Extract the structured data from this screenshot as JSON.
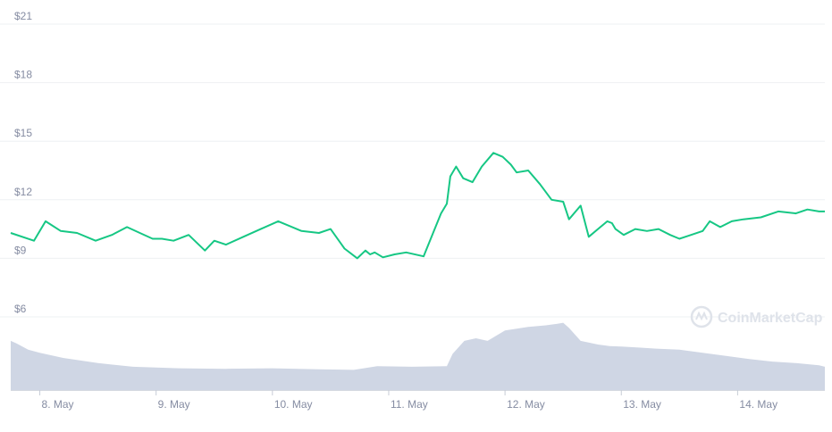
{
  "chart_data": {
    "type": "line",
    "y_axis": {
      "min": 6,
      "max": 21,
      "ticks": [
        21,
        18,
        15,
        12,
        9,
        6
      ],
      "tick_labels": [
        "$21",
        "$18",
        "$15",
        "$12",
        "$9",
        "$6"
      ],
      "grid": true
    },
    "x_axis": {
      "range_days": [
        7.75,
        14.75
      ],
      "tick_days": [
        8,
        9,
        10,
        11,
        12,
        13,
        14
      ],
      "tick_labels": [
        "8. May",
        "9. May",
        "10. May",
        "11. May",
        "12. May",
        "13. May",
        "14. May"
      ]
    },
    "series": [
      {
        "kind": "price",
        "color": "#16c784",
        "x_day": [
          7.75,
          7.95,
          8.05,
          8.18,
          8.32,
          8.48,
          8.62,
          8.75,
          8.86,
          8.97,
          9.05,
          9.15,
          9.28,
          9.42,
          9.5,
          9.6,
          9.75,
          9.9,
          10.05,
          10.25,
          10.4,
          10.5,
          10.62,
          10.73,
          10.8,
          10.84,
          10.88,
          10.95,
          11.05,
          11.15,
          11.3,
          11.45,
          11.5,
          11.53,
          11.58,
          11.64,
          11.72,
          11.8,
          11.9,
          11.98,
          12.05,
          12.1,
          12.2,
          12.3,
          12.4,
          12.5,
          12.55,
          12.65,
          12.72,
          12.82,
          12.88,
          12.92,
          12.95,
          13.02,
          13.12,
          13.22,
          13.32,
          13.42,
          13.5,
          13.6,
          13.7,
          13.76,
          13.85,
          13.95,
          14.05,
          14.2,
          14.35,
          14.5,
          14.6,
          14.7,
          14.75
        ],
        "y_price": [
          10.3,
          9.9,
          10.9,
          10.4,
          10.3,
          9.9,
          10.2,
          10.6,
          10.3,
          10.0,
          10.0,
          9.9,
          10.2,
          9.4,
          9.9,
          9.7,
          10.1,
          10.5,
          10.9,
          10.4,
          10.3,
          10.5,
          9.5,
          9.0,
          9.4,
          9.2,
          9.3,
          9.05,
          9.2,
          9.3,
          9.1,
          11.3,
          11.8,
          13.2,
          13.7,
          13.1,
          12.9,
          13.7,
          14.4,
          14.2,
          13.8,
          13.4,
          13.5,
          12.8,
          12.0,
          11.9,
          11.0,
          11.7,
          10.1,
          10.6,
          10.9,
          10.8,
          10.5,
          10.2,
          10.5,
          10.4,
          10.5,
          10.2,
          10.0,
          10.2,
          10.4,
          10.9,
          10.6,
          10.9,
          11.0,
          11.1,
          11.4,
          11.3,
          11.5,
          11.4,
          11.4
        ]
      },
      {
        "kind": "volume",
        "color": "#cfd6e4",
        "x_day": [
          7.75,
          7.8,
          7.9,
          8.0,
          8.2,
          8.5,
          8.8,
          9.2,
          9.6,
          10.0,
          10.4,
          10.7,
          10.9,
          11.2,
          11.5,
          11.55,
          11.65,
          11.75,
          11.85,
          12.0,
          12.2,
          12.35,
          12.45,
          12.5,
          12.55,
          12.65,
          12.8,
          12.9,
          13.0,
          13.15,
          13.3,
          13.5,
          13.7,
          13.9,
          14.1,
          14.3,
          14.5,
          14.7,
          14.75
        ],
        "volume_rel": [
          0.95,
          0.9,
          0.78,
          0.72,
          0.62,
          0.52,
          0.45,
          0.42,
          0.41,
          0.42,
          0.4,
          0.39,
          0.46,
          0.45,
          0.46,
          0.7,
          0.95,
          1.0,
          0.95,
          1.15,
          1.22,
          1.25,
          1.28,
          1.3,
          1.2,
          0.95,
          0.88,
          0.85,
          0.84,
          0.82,
          0.8,
          0.78,
          0.72,
          0.66,
          0.6,
          0.55,
          0.52,
          0.48,
          0.45
        ]
      }
    ],
    "legend": "none"
  },
  "watermark": {
    "text": "CoinMarketCap",
    "color": "#dfe3ea"
  }
}
